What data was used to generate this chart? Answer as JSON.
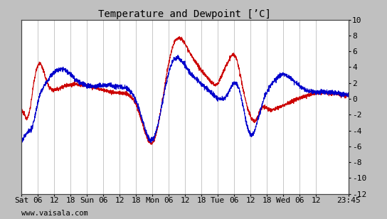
{
  "title": "Temperature and Dewpoint [’C]",
  "ylim": [
    -12,
    10
  ],
  "yticks": [
    -12,
    -10,
    -8,
    -6,
    -4,
    -2,
    0,
    2,
    4,
    6,
    8,
    10
  ],
  "x_tick_labels": [
    "Sat",
    "06",
    "12",
    "18",
    "Sun",
    "06",
    "12",
    "18",
    "Mon",
    "06",
    "12",
    "18",
    "Tue",
    "06",
    "12",
    "18",
    "Wed",
    "06",
    "12",
    "23:45"
  ],
  "x_tick_positions": [
    0,
    6,
    12,
    18,
    24,
    30,
    36,
    42,
    48,
    54,
    60,
    66,
    72,
    78,
    84,
    90,
    96,
    102,
    108,
    119.75
  ],
  "total_hours": 119.75,
  "temp_color": "#cc0000",
  "dewp_color": "#0000cc",
  "background_color": "#c0c0c0",
  "plot_bg_color": "#ffffff",
  "grid_color": "#b0b0b0",
  "watermark": "www.vaisala.com",
  "title_fontsize": 10,
  "tick_fontsize": 8,
  "watermark_fontsize": 7.5,
  "line_width": 0.8
}
